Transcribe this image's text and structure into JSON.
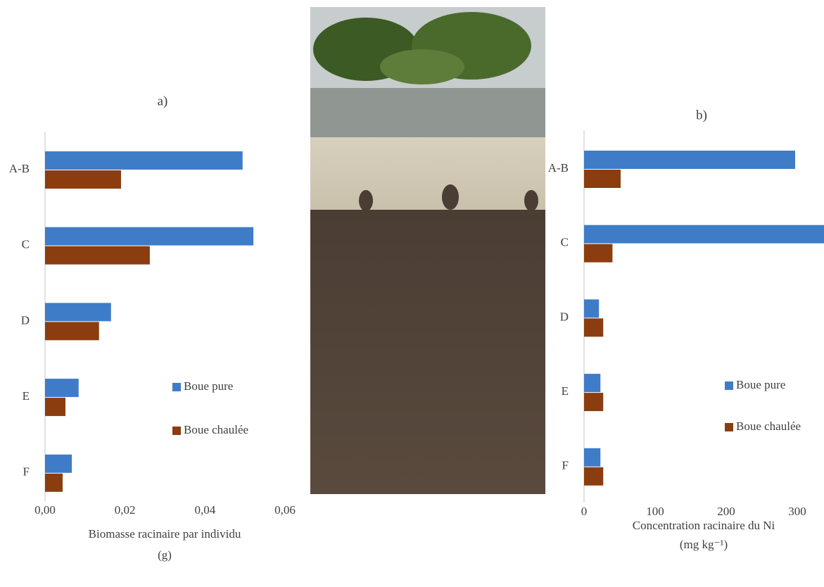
{
  "chart_data": [
    {
      "type": "barh",
      "title": "a)",
      "categories": [
        "A-B",
        "C",
        "D",
        "E",
        "F"
      ],
      "series": [
        {
          "name": "Boue pure",
          "color": "#3f7cc8",
          "values": [
            0.0494,
            0.0521,
            0.0165,
            0.0084,
            0.0067
          ]
        },
        {
          "name": "Boue chaulée",
          "color": "#8b3d0f",
          "values": [
            0.019,
            0.0262,
            0.0135,
            0.0051,
            0.0044
          ]
        }
      ],
      "x_label": [
        "Biomasse racinaire par individu",
        "(g)"
      ],
      "xlim": [
        0,
        0.06
      ],
      "xticks": [
        {
          "value": 0,
          "label": "0,00"
        },
        {
          "value": 0.02,
          "label": "0,02"
        },
        {
          "value": 0.04,
          "label": "0,04"
        },
        {
          "value": 0.06,
          "label": "0,06"
        }
      ],
      "grid": false,
      "legend": "right"
    },
    {
      "type": "barh",
      "title": "b)",
      "categories": [
        "A-B",
        "C",
        "D",
        "E",
        "F"
      ],
      "series": [
        {
          "name": "Boue pure",
          "color": "#3f7cc8",
          "values": [
            297,
            345,
            21,
            23,
            23
          ]
        },
        {
          "name": "Boue chaulée",
          "color": "#8b3d0f",
          "values": [
            51.5,
            40,
            27,
            27,
            27
          ]
        }
      ],
      "x_label": [
        "Concentration racinaire du Ni",
        "(mg kg⁻¹)"
      ],
      "xlim": [
        0,
        337.6
      ],
      "xticks": [
        0,
        100,
        200,
        300
      ],
      "grid": false,
      "legend": "right"
    }
  ]
}
